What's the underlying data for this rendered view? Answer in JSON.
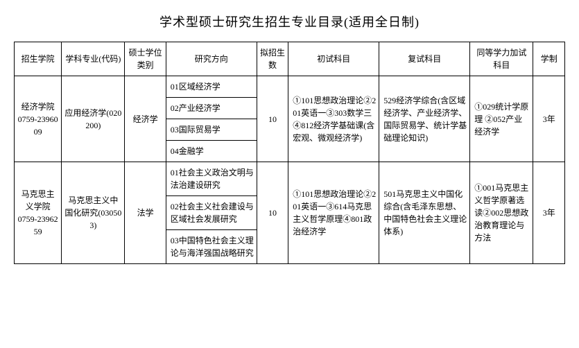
{
  "title": "学术型硕士研究生招生专业目录(适用全日制)",
  "headers": {
    "college": "招生学院",
    "major": "学科专业(代码)",
    "degree": "硕士学位类别",
    "direction": "研究方向",
    "quota": "拟招生数",
    "prelim": "初试科目",
    "retest": "复试科目",
    "equiv": "同等学力加试科目",
    "duration": "学制"
  },
  "rows": [
    {
      "college": "经济学院\n0759-2396009",
      "major": "应用经济学(020200)",
      "degree": "经济学",
      "directions": [
        "01区域经济学",
        "02产业经济学",
        "03国际贸易学",
        "04金融学"
      ],
      "quota": "10",
      "prelim": "①101思想政治理论②201英语一③303数学三④812经济学基础课(含宏观、微观经济学)",
      "retest": "529经济学综合(含区域经济学、产业经济学、国际贸易学、统计学基础理论知识)",
      "equiv": "①029统计学原理 ②052产业经济学",
      "duration": "3年"
    },
    {
      "college": "马克思主义学院\n0759-2396259",
      "major": "马克思主义中国化研究(030503)",
      "degree": "法学",
      "directions": [
        "01社会主义政治文明与法治建设研究",
        "02社会主义社会建设与区域社会发展研究",
        "03中国特色社会主义理论与海洋强国战略研究"
      ],
      "quota": "10",
      "prelim": "①101思想政治理论②201英语一③614马克思主义哲学原理④801政治经济学",
      "retest": "501马克思主义中国化综合(含毛泽东思想、中国特色社会主义理论体系)",
      "equiv": "①001马克思主义哲学原著选读②002思想政治教育理论与方法",
      "duration": "3年"
    }
  ]
}
